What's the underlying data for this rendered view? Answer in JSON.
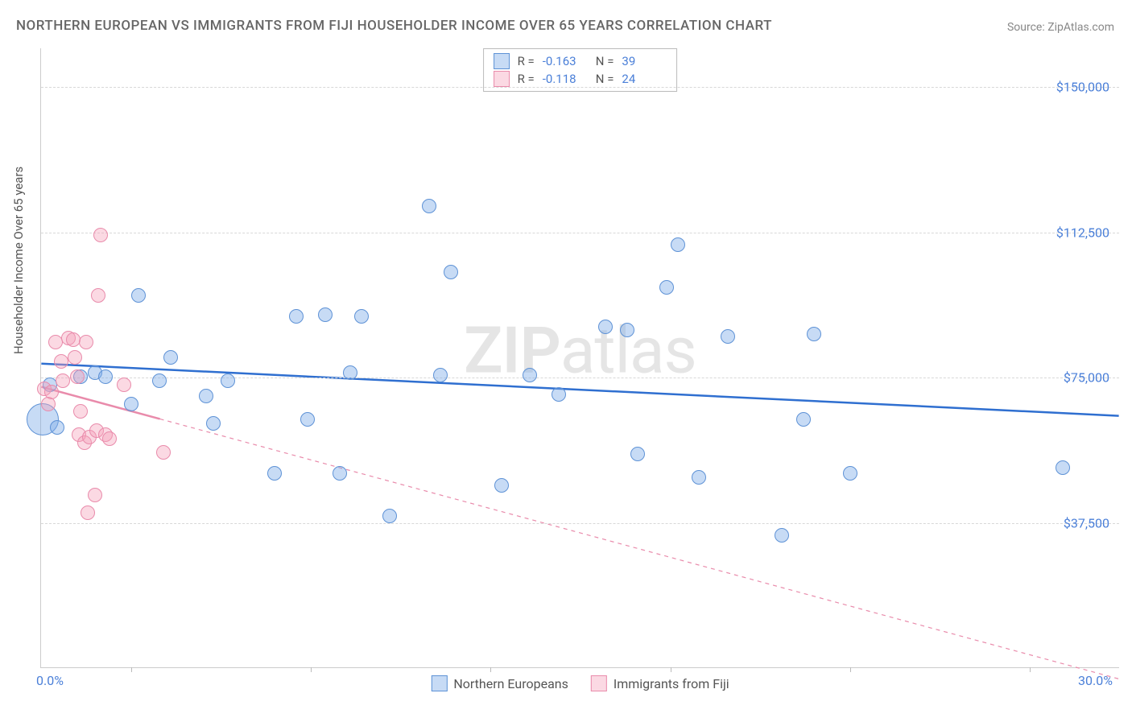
{
  "title": "NORTHERN EUROPEAN VS IMMIGRANTS FROM FIJI HOUSEHOLDER INCOME OVER 65 YEARS CORRELATION CHART",
  "source": "Source: ZipAtlas.com",
  "watermark_a": "ZIP",
  "watermark_b": "atlas",
  "chart": {
    "type": "scatter",
    "background_color": "#ffffff",
    "grid_color": "#d8d8d8",
    "axis_color": "#cccccc",
    "tick_label_color": "#4a7fd8",
    "ylabel": "Householder Income Over 65 years",
    "ylabel_fontsize": 15,
    "xlim": [
      0.0,
      30.0
    ],
    "ylim": [
      0,
      160000
    ],
    "yticks": [
      {
        "v": 37500,
        "label": "$37,500"
      },
      {
        "v": 75000,
        "label": "$75,000"
      },
      {
        "v": 112500,
        "label": "$112,500"
      },
      {
        "v": 150000,
        "label": "$150,000"
      }
    ],
    "xtick_marks": [
      2.5,
      7.5,
      12.5,
      17.5,
      22.5,
      27.5
    ],
    "xticks_labeled": [
      {
        "v": 0.0,
        "label": "0.0%"
      },
      {
        "v": 30.0,
        "label": "30.0%"
      }
    ],
    "marker_radius": 9,
    "marker_border_width": 1.2,
    "trend_line_width": 2.5,
    "series": [
      {
        "name": "Northern Europeans",
        "fill": "rgba(122,169,232,0.42)",
        "stroke": "#5e92d6",
        "trend_stroke": "#2f6fd0",
        "trend_dash": "none",
        "r_value": "-0.163",
        "n_value": "39",
        "trend": {
          "x1": 0.0,
          "y1": 78500,
          "x2": 30.0,
          "y2": 65000
        },
        "points": [
          {
            "x": 0.05,
            "y": 64000,
            "r": 20
          },
          {
            "x": 0.25,
            "y": 73000
          },
          {
            "x": 0.45,
            "y": 62000
          },
          {
            "x": 1.1,
            "y": 75000
          },
          {
            "x": 1.5,
            "y": 76000
          },
          {
            "x": 1.8,
            "y": 75000
          },
          {
            "x": 2.5,
            "y": 68000
          },
          {
            "x": 2.7,
            "y": 96000
          },
          {
            "x": 3.3,
            "y": 74000
          },
          {
            "x": 3.6,
            "y": 80000
          },
          {
            "x": 4.6,
            "y": 70000
          },
          {
            "x": 4.8,
            "y": 63000
          },
          {
            "x": 5.2,
            "y": 74000
          },
          {
            "x": 6.5,
            "y": 50000
          },
          {
            "x": 7.1,
            "y": 90500
          },
          {
            "x": 7.4,
            "y": 64000
          },
          {
            "x": 7.9,
            "y": 91000
          },
          {
            "x": 8.3,
            "y": 50000
          },
          {
            "x": 8.6,
            "y": 76000
          },
          {
            "x": 8.9,
            "y": 90500
          },
          {
            "x": 9.7,
            "y": 39000
          },
          {
            "x": 10.8,
            "y": 119000
          },
          {
            "x": 11.1,
            "y": 75500
          },
          {
            "x": 11.4,
            "y": 102000
          },
          {
            "x": 12.8,
            "y": 47000
          },
          {
            "x": 13.6,
            "y": 75500
          },
          {
            "x": 14.4,
            "y": 70500
          },
          {
            "x": 15.7,
            "y": 88000
          },
          {
            "x": 16.3,
            "y": 87000
          },
          {
            "x": 16.6,
            "y": 55000
          },
          {
            "x": 17.7,
            "y": 109000
          },
          {
            "x": 17.4,
            "y": 98000
          },
          {
            "x": 18.3,
            "y": 49000
          },
          {
            "x": 19.1,
            "y": 85500
          },
          {
            "x": 20.6,
            "y": 34000
          },
          {
            "x": 21.2,
            "y": 64000
          },
          {
            "x": 21.5,
            "y": 86000
          },
          {
            "x": 22.5,
            "y": 50000
          },
          {
            "x": 28.4,
            "y": 51500
          }
        ]
      },
      {
        "name": "Immigrants from Fiji",
        "fill": "rgba(244,160,186,0.40)",
        "stroke": "#e98bab",
        "trend_stroke": "#e98bab",
        "trend_dash": "5,5",
        "trend_solid_until_x": 3.3,
        "r_value": "-0.118",
        "n_value": "24",
        "trend": {
          "x1": 0.0,
          "y1": 72500,
          "x2": 30.0,
          "y2": -3000
        },
        "points": [
          {
            "x": 0.1,
            "y": 72000
          },
          {
            "x": 0.2,
            "y": 68000
          },
          {
            "x": 0.3,
            "y": 71000
          },
          {
            "x": 0.4,
            "y": 84000
          },
          {
            "x": 0.55,
            "y": 79000
          },
          {
            "x": 0.6,
            "y": 74000
          },
          {
            "x": 0.75,
            "y": 85000
          },
          {
            "x": 0.9,
            "y": 84500
          },
          {
            "x": 0.95,
            "y": 80000
          },
          {
            "x": 1.0,
            "y": 75000
          },
          {
            "x": 1.05,
            "y": 60000
          },
          {
            "x": 1.1,
            "y": 66000
          },
          {
            "x": 1.2,
            "y": 58000
          },
          {
            "x": 1.25,
            "y": 84000
          },
          {
            "x": 1.3,
            "y": 40000
          },
          {
            "x": 1.35,
            "y": 59500
          },
          {
            "x": 1.5,
            "y": 44500
          },
          {
            "x": 1.55,
            "y": 61000
          },
          {
            "x": 1.6,
            "y": 96000
          },
          {
            "x": 1.65,
            "y": 111500
          },
          {
            "x": 1.8,
            "y": 60000
          },
          {
            "x": 1.9,
            "y": 59000
          },
          {
            "x": 2.3,
            "y": 73000
          },
          {
            "x": 3.4,
            "y": 55500
          }
        ]
      }
    ]
  },
  "rlegend_labels": {
    "r": "R =",
    "n": "N ="
  }
}
